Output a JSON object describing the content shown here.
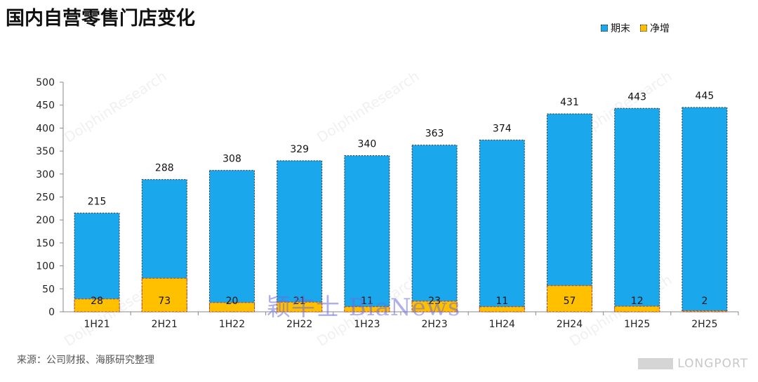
{
  "title": "国内自营零售门店变化",
  "source": "来源：公司财报、海豚研究整理",
  "watermarks": {
    "center": "颖牛士 BiaNews",
    "corner": "LONGPORT",
    "diagonal": "DolphinResearch"
  },
  "colors": {
    "period_end": "#1aa7ec",
    "net_increase": "#ffc000",
    "net_increase_border": "#c0392b",
    "axis_text": "#222222"
  },
  "chart_data": {
    "type": "bar",
    "categories": [
      "1H21",
      "2H21",
      "1H22",
      "2H22",
      "1H23",
      "2H23",
      "1H24",
      "2H24",
      "1H25",
      "2H25"
    ],
    "series": [
      {
        "name": "期末",
        "values": [
          215,
          288,
          308,
          329,
          340,
          363,
          374,
          431,
          443,
          445
        ]
      },
      {
        "name": "净增",
        "values": [
          28,
          73,
          20,
          21,
          11,
          23,
          11,
          57,
          12,
          2
        ]
      }
    ],
    "title": "国内自营零售门店变化",
    "xlabel": "",
    "ylabel": "",
    "ylim": [
      0,
      500
    ],
    "yticks": [
      0,
      50,
      100,
      150,
      200,
      250,
      300,
      350,
      400,
      450,
      500
    ],
    "grid": false,
    "legend": "top-right",
    "overlap": true
  }
}
